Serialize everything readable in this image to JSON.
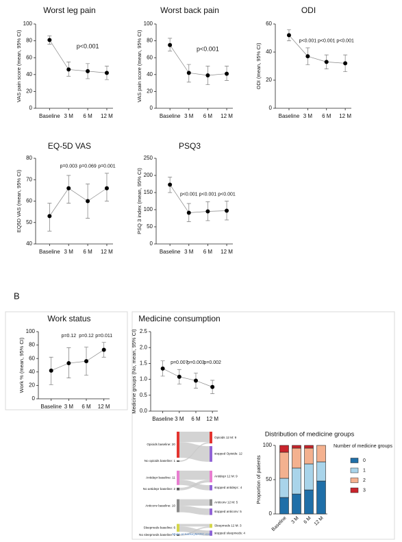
{
  "panel_label": "B",
  "chart_data": [
    {
      "type": "line",
      "title": "Worst leg pain",
      "y_label": "VAS pain score (mean, 95% CI)",
      "categories": [
        "Baseline",
        "3 M",
        "6 M",
        "12 M"
      ],
      "values": [
        81,
        46,
        44,
        42
      ],
      "ci_low": [
        76,
        38,
        35,
        34
      ],
      "ci_high": [
        86,
        55,
        53,
        50
      ],
      "ylim": [
        0,
        100
      ],
      "yticks": [
        0,
        20,
        40,
        60,
        80,
        100
      ],
      "annotations": [
        "p<0.001"
      ]
    },
    {
      "type": "line",
      "title": "Worst back pain",
      "y_label": "VAS pain score (mean, 95% CI)",
      "categories": [
        "Baseline",
        "3 M",
        "6 M",
        "12 M"
      ],
      "values": [
        75,
        42,
        39,
        41
      ],
      "ci_low": [
        68,
        31,
        28,
        33
      ],
      "ci_high": [
        83,
        52,
        50,
        50
      ],
      "ylim": [
        0,
        100
      ],
      "yticks": [
        0,
        20,
        40,
        60,
        80,
        100
      ],
      "annotations": [
        "p<0.001"
      ]
    },
    {
      "type": "line",
      "title": "ODI",
      "y_label": "ODI (mean, 95% CI)",
      "categories": [
        "Baseline",
        "3 M",
        "6 M",
        "12 M"
      ],
      "values": [
        52,
        37,
        33,
        32
      ],
      "ci_low": [
        48,
        31,
        28,
        26
      ],
      "ci_high": [
        56,
        43,
        38,
        38
      ],
      "ylim": [
        0,
        60
      ],
      "yticks": [
        0,
        20,
        40,
        60
      ],
      "annotations": [
        "p<0.001",
        "p<0.001",
        "p<0.001"
      ]
    },
    {
      "type": "line",
      "title": "EQ-5D VAS",
      "y_label": "EQ5D VAS (mean, 95% CI)",
      "categories": [
        "Baseline",
        "3 M",
        "6 M",
        "12 M"
      ],
      "values": [
        53,
        66,
        60,
        66
      ],
      "ci_low": [
        46,
        59,
        52,
        60
      ],
      "ci_high": [
        59,
        72,
        68,
        73
      ],
      "ylim": [
        40,
        80
      ],
      "yticks": [
        40,
        50,
        60,
        70,
        80
      ],
      "annotations": [
        "p=0.003",
        "p=0.069",
        "p=0.001"
      ]
    },
    {
      "type": "line",
      "title": "PSQ3",
      "y_label": "PSQ 3 index (mean, 95% CI)",
      "categories": [
        "Baseline",
        "3 M",
        "6 M",
        "12 M"
      ],
      "values": [
        173,
        91,
        95,
        97
      ],
      "ci_low": [
        150,
        65,
        68,
        70
      ],
      "ci_high": [
        195,
        118,
        123,
        125
      ],
      "ylim": [
        0,
        250
      ],
      "yticks": [
        0,
        50,
        100,
        150,
        200,
        250
      ],
      "annotations": [
        "p<0.001",
        "p<0.001",
        "p<0.001"
      ]
    },
    {
      "type": "line",
      "title": "Work status",
      "y_label": "Work % (mean, 95% CI)",
      "categories": [
        "Baseline",
        "3 M",
        "6 M",
        "12 M"
      ],
      "values": [
        42,
        53,
        56,
        73
      ],
      "ci_low": [
        21,
        31,
        35,
        62
      ],
      "ci_high": [
        62,
        76,
        77,
        84
      ],
      "ylim": [
        0,
        100
      ],
      "yticks": [
        0,
        20,
        40,
        60,
        80,
        100
      ],
      "annotations": [
        "p=0.12",
        "p=0.12",
        "p=0.011"
      ]
    },
    {
      "type": "line",
      "title": "Medicine consumption",
      "y_label": "Medicine groups (No, mean, 95% CI)",
      "categories": [
        "Baseline",
        "3 M",
        "6 M",
        "12 M"
      ],
      "values": [
        1.34,
        1.08,
        0.96,
        0.76
      ],
      "ci_low": [
        1.1,
        0.85,
        0.72,
        0.55
      ],
      "ci_high": [
        1.58,
        1.31,
        1.2,
        0.97
      ],
      "ylim": [
        0,
        2.5
      ],
      "yticks": [
        {
          "value": 0,
          "label": "0.0"
        },
        {
          "value": 0.5,
          "label": "0.5"
        },
        {
          "value": 1,
          "label": "1.0"
        },
        {
          "value": 1.5,
          "label": "1.5"
        },
        {
          "value": 2,
          "label": "2.0"
        },
        {
          "value": 2.5,
          "label": "2.5"
        }
      ],
      "annotations": [
        "p=0.007",
        "p=0.003",
        "p=0.002"
      ]
    },
    {
      "type": "sankey",
      "footer": "Made at SankeyMATIC.com",
      "flow_color": "#c8c8c8",
      "groups": [
        {
          "left": [
            {
              "label": "Opioids baseline: 20",
              "value": 20,
              "color": "#e3342f"
            },
            {
              "label": "No opioids baseline: 1",
              "value": 1,
              "color": "#555555"
            }
          ],
          "right": [
            {
              "label": "Opioids 12 M: 9",
              "value": 9,
              "color": "#e3342f"
            },
            {
              "label": "stopped Opioids: 12",
              "value": 12,
              "color": "#9163d6"
            }
          ],
          "flows": [
            {
              "source": 0,
              "target": 0,
              "value": 8
            },
            {
              "source": 0,
              "target": 1,
              "value": 12
            },
            {
              "source": 1,
              "target": 0,
              "value": 1
            }
          ]
        },
        {
          "left": [
            {
              "label": "Antidepr baseline: 11",
              "value": 11,
              "color": "#e87dd0"
            },
            {
              "label": "No antidepr baseline: 2",
              "value": 2,
              "color": "#555555"
            }
          ],
          "right": [
            {
              "label": "Antidepr 12 M: 9",
              "value": 9,
              "color": "#e87dd0"
            },
            {
              "label": "stopped antidepr.: 4",
              "value": 4,
              "color": "#9163d6"
            }
          ],
          "flows": [
            {
              "source": 0,
              "target": 0,
              "value": 7
            },
            {
              "source": 0,
              "target": 1,
              "value": 4
            },
            {
              "source": 1,
              "target": 0,
              "value": 2
            }
          ]
        },
        {
          "left": [
            {
              "label": "Anticonv baseline: 10",
              "value": 10,
              "color": "#8a8a8a"
            }
          ],
          "right": [
            {
              "label": "Anticonv 12 M: 5",
              "value": 5,
              "color": "#8a8a8a"
            },
            {
              "label": "stopped anticonv: 5",
              "value": 5,
              "color": "#9163d6"
            }
          ],
          "flows": [
            {
              "source": 0,
              "target": 0,
              "value": 5
            },
            {
              "source": 0,
              "target": 1,
              "value": 5
            }
          ]
        },
        {
          "left": [
            {
              "label": "Sleepmeds baseline: 6",
              "value": 6,
              "color": "#d4d64a"
            },
            {
              "label": "No sleepmeds baseline: 1",
              "value": 1,
              "color": "#555555"
            }
          ],
          "right": [
            {
              "label": "Sleepmeds 12 M: 3",
              "value": 3,
              "color": "#d4d64a"
            },
            {
              "label": "stopped sleepmeds: 4",
              "value": 4,
              "color": "#9163d6"
            }
          ],
          "flows": [
            {
              "source": 0,
              "target": 0,
              "value": 2
            },
            {
              "source": 0,
              "target": 1,
              "value": 4
            },
            {
              "source": 1,
              "target": 0,
              "value": 1
            }
          ]
        }
      ]
    },
    {
      "type": "stacked_bar",
      "title": "Distribution of medicine groups",
      "y_label": "Proportion of patients",
      "legend_title": "Number of medicine groups",
      "categories": [
        "Baseline",
        "3 M",
        "6 M",
        "12 M"
      ],
      "series": [
        {
          "name": "0",
          "color": "#1f6fa8",
          "values": [
            24,
            29,
            35,
            48
          ]
        },
        {
          "name": "1",
          "color": "#a9d4ea",
          "values": [
            28,
            38,
            38,
            28
          ]
        },
        {
          "name": "2",
          "color": "#f4b18f",
          "values": [
            38,
            29,
            23,
            24
          ]
        },
        {
          "name": "3",
          "color": "#c9242c",
          "values": [
            10,
            4,
            4,
            0
          ]
        }
      ],
      "ylim": [
        0,
        100
      ],
      "yticks": [
        0,
        50,
        100
      ]
    }
  ]
}
